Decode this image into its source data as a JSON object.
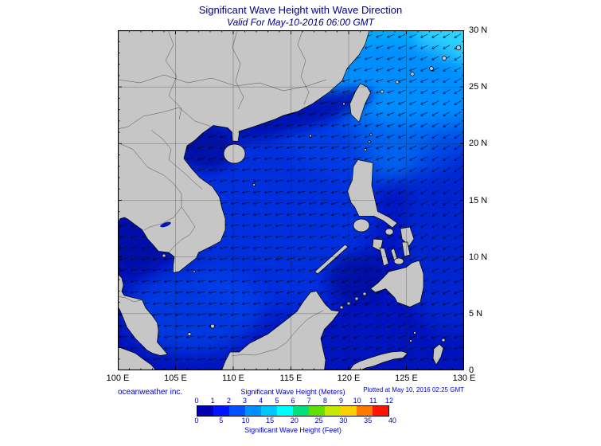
{
  "header": {
    "title": "Significant Wave Height with Wave Direction",
    "subtitle": "Valid For May-10-2016 06:00 GMT"
  },
  "map": {
    "lon_ticks": [
      "100 E",
      "105 E",
      "110 E",
      "115 E",
      "120 E",
      "125 E",
      "130 E"
    ],
    "lat_ticks": [
      "30 N",
      "25 N",
      "20 N",
      "15 N",
      "10 N",
      "5 N",
      "0"
    ]
  },
  "footer": {
    "source": "oceanweather inc.",
    "plotted": "Plotted at May 10, 2016 02:25 GMT"
  },
  "colorbar": {
    "meters_label": "Significant Wave Height (Meters)",
    "feet_label": "Significant Wave Height (Feet)",
    "meters_ticks": [
      "0",
      "1",
      "2",
      "3",
      "4",
      "5",
      "6",
      "7",
      "8",
      "9",
      "10",
      "11",
      "12"
    ],
    "feet_ticks": [
      "0",
      "5",
      "10",
      "15",
      "20",
      "25",
      "30",
      "35",
      "40"
    ],
    "segment_colors": [
      "#0000b4",
      "#0014ff",
      "#0050ff",
      "#0090ff",
      "#00c8ff",
      "#00ffff",
      "#00e080",
      "#60e000",
      "#c8e800",
      "#ffd000",
      "#ff7800",
      "#ff1400"
    ]
  },
  "colors": {
    "land": "#c6c6c6",
    "coast": "#000000",
    "ocean": "#0013bc",
    "title-text": "#000080",
    "blue-text": "#0000cc"
  }
}
